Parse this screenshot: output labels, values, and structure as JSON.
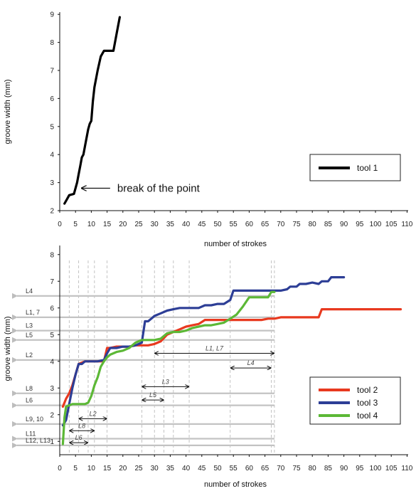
{
  "chart_data": [
    {
      "type": "line",
      "xlabel": "number of strokes",
      "ylabel": "groove width (mm)",
      "xlim": [
        0,
        110
      ],
      "ylim": [
        2,
        9
      ],
      "xticks": [
        "0",
        "5",
        "10",
        "15",
        "20",
        "25",
        "30",
        "35",
        "40",
        "45",
        "50",
        "55",
        "60",
        "65",
        "70",
        "75",
        "80",
        "85",
        "90",
        "95",
        "100",
        "105",
        "110"
      ],
      "yticks": [
        "2",
        "3",
        "4",
        "5",
        "6",
        "7",
        "8",
        "9"
      ],
      "legend_position": "bottom-right",
      "series": [
        {
          "name": "tool 1",
          "color": "#000000",
          "x": [
            1.5,
            2.5,
            3,
            4.5,
            5.5,
            6,
            6.5,
            7,
            7.5,
            8,
            9,
            9.5,
            10,
            10.5,
            11,
            12,
            13,
            14,
            15,
            17,
            18,
            19
          ],
          "y": [
            2.25,
            2.45,
            2.55,
            2.6,
            3.0,
            3.3,
            3.6,
            3.9,
            4.0,
            4.3,
            4.9,
            5.1,
            5.2,
            5.9,
            6.4,
            7.0,
            7.5,
            7.7,
            7.7,
            7.7,
            8.3,
            8.9
          ]
        }
      ],
      "annotations": [
        {
          "text": "break  of the point",
          "x": 6.5,
          "y": 2.8
        }
      ]
    },
    {
      "type": "line",
      "xlabel": "number of strokes",
      "ylabel": "groove width (mm)",
      "xlim": [
        0,
        110
      ],
      "ylim": [
        0.5,
        8.2
      ],
      "xticks": [
        "0",
        "5",
        "10",
        "15",
        "20",
        "25",
        "30",
        "35",
        "40",
        "45",
        "50",
        "55",
        "60",
        "65",
        "70",
        "75",
        "80",
        "85",
        "90",
        "95",
        "100",
        "105",
        "110"
      ],
      "yticks": [
        "1",
        "2",
        "3",
        "4",
        "5",
        "6",
        "7",
        "8"
      ],
      "legend_position": "bottom-right",
      "series": [
        {
          "name": "tool 2",
          "color": "#e8391f",
          "x": [
            1,
            2,
            3,
            4,
            5,
            6,
            7,
            8,
            10,
            12,
            14,
            15,
            16,
            18,
            20,
            22,
            24,
            26,
            28,
            30,
            32,
            34,
            36,
            38,
            40,
            42,
            44,
            46,
            48,
            50,
            52,
            54,
            56,
            58,
            60,
            62,
            64,
            66,
            68,
            70,
            72,
            74,
            76,
            78,
            80,
            82,
            83,
            85,
            90,
            95,
            100,
            105,
            108
          ],
          "y": [
            2.3,
            2.6,
            2.8,
            3.1,
            3.5,
            3.9,
            3.95,
            4.0,
            4.0,
            4.0,
            4.0,
            4.5,
            4.5,
            4.55,
            4.55,
            4.55,
            4.6,
            4.6,
            4.6,
            4.65,
            4.75,
            5.0,
            5.1,
            5.2,
            5.3,
            5.35,
            5.4,
            5.55,
            5.55,
            5.55,
            5.55,
            5.55,
            5.55,
            5.55,
            5.55,
            5.55,
            5.55,
            5.6,
            5.6,
            5.65,
            5.65,
            5.65,
            5.65,
            5.65,
            5.65,
            5.65,
            5.95,
            5.95,
            5.95,
            5.95,
            5.95,
            5.95,
            5.95
          ]
        },
        {
          "name": "tool 3",
          "color": "#2d3e96",
          "x": [
            1,
            2,
            3,
            4,
            5,
            6,
            7,
            8,
            10,
            12,
            14,
            15,
            16,
            18,
            20,
            22,
            24,
            26,
            27,
            28,
            29,
            30,
            32,
            34,
            36,
            38,
            40,
            42,
            44,
            46,
            48,
            50,
            52,
            54,
            55,
            57,
            60,
            62,
            65,
            68,
            70,
            72,
            73,
            75,
            76,
            78,
            80,
            82,
            83,
            85,
            86,
            87,
            88,
            90
          ],
          "y": [
            1.6,
            1.8,
            2.4,
            3.0,
            3.5,
            3.9,
            3.9,
            4.0,
            4.0,
            4.0,
            4.05,
            4.3,
            4.5,
            4.5,
            4.55,
            4.55,
            4.6,
            4.7,
            5.5,
            5.5,
            5.6,
            5.7,
            5.8,
            5.9,
            5.95,
            6.0,
            6.0,
            6.0,
            6.0,
            6.1,
            6.1,
            6.15,
            6.15,
            6.3,
            6.65,
            6.65,
            6.65,
            6.65,
            6.65,
            6.65,
            6.65,
            6.7,
            6.8,
            6.8,
            6.9,
            6.9,
            6.95,
            6.9,
            7.0,
            7.0,
            7.15,
            7.15,
            7.15,
            7.15
          ]
        },
        {
          "name": "tool 4",
          "color": "#5cb836",
          "x": [
            1,
            1.5,
            2,
            3,
            4,
            5,
            6,
            7,
            8,
            9,
            10,
            11,
            12,
            13,
            14,
            15,
            16,
            18,
            20,
            22,
            24,
            25,
            26,
            28,
            30,
            32,
            34,
            36,
            38,
            40,
            42,
            44,
            46,
            48,
            50,
            52,
            54,
            56,
            58,
            60,
            62,
            64,
            66,
            67,
            68
          ],
          "y": [
            0.9,
            1.9,
            2.3,
            2.35,
            2.4,
            2.4,
            2.4,
            2.4,
            2.4,
            2.45,
            2.7,
            3.1,
            3.4,
            3.8,
            4.0,
            4.15,
            4.25,
            4.35,
            4.4,
            4.5,
            4.7,
            4.75,
            4.8,
            4.8,
            4.8,
            4.85,
            5.05,
            5.1,
            5.1,
            5.15,
            5.25,
            5.3,
            5.35,
            5.35,
            5.4,
            5.45,
            5.6,
            5.75,
            6.05,
            6.4,
            6.4,
            6.4,
            6.4,
            6.6,
            6.6
          ]
        }
      ],
      "left_arrows": [
        {
          "label": "L4",
          "y": 6.45
        },
        {
          "label": "L1, 7",
          "y": 5.65
        },
        {
          "label": "L3",
          "y": 5.15
        },
        {
          "label": "L5",
          "y": 4.8
        },
        {
          "label": "L2",
          "y": 4.05
        },
        {
          "label": "L8",
          "y": 2.8
        },
        {
          "label": "L6",
          "y": 2.35
        },
        {
          "label": "L9, 10",
          "y": 1.65
        },
        {
          "label": "L11",
          "y": 1.1
        },
        {
          "label": "L12, L13",
          "y": 0.85
        }
      ],
      "ranges": [
        {
          "label": "L1, L7",
          "x1": 30,
          "x2": 68,
          "y": 4.3
        },
        {
          "label": "L4",
          "x1": 54,
          "x2": 67,
          "y": 3.75
        },
        {
          "label": "L3",
          "x1": 26,
          "x2": 41,
          "y": 3.05
        },
        {
          "label": "L5",
          "x1": 26,
          "x2": 33,
          "y": 2.55
        },
        {
          "label": "L2",
          "x1": 6,
          "x2": 15,
          "y": 1.85
        },
        {
          "label": "L8",
          "x1": 3,
          "x2": 11,
          "y": 1.4
        },
        {
          "label": "L6",
          "x1": 3,
          "x2": 9,
          "y": 0.95
        }
      ],
      "guides_x": [
        3,
        6,
        9,
        11,
        15,
        26,
        30,
        33,
        36,
        41,
        54,
        67,
        68
      ]
    }
  ]
}
